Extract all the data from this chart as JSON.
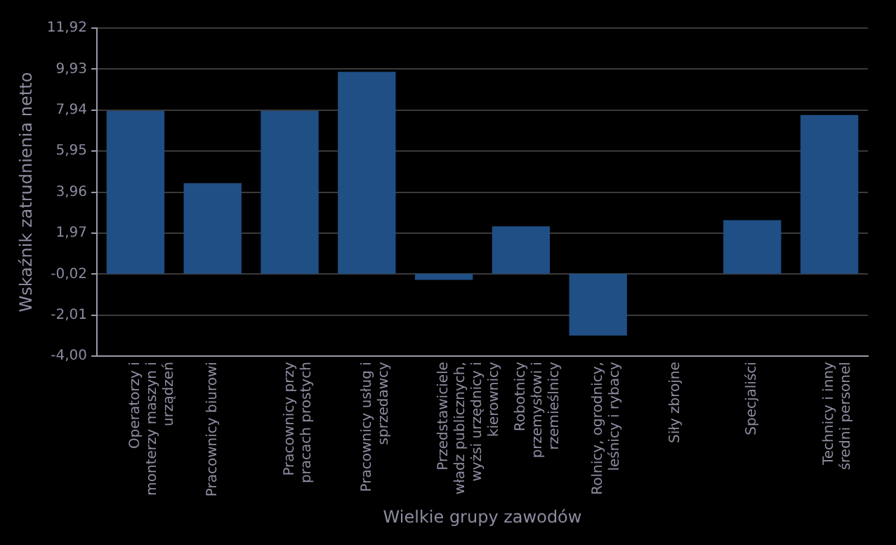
{
  "chart_data": {
    "type": "bar",
    "xlabel": "Wielkie grupy zawodów",
    "ylabel": "Wskaźnik zatrudnienia netto",
    "categories": [
      "Operatorzy i monterzy maszyn i urządzeń",
      "Pracownicy biurowi",
      "Pracownicy przy pracach prostych",
      "Pracownicy usług i sprzedawcy",
      "Przedstawiciele władz publicznych, wyżsi urzędnicy i kierownicy",
      "Robotnicy przemysłowi i rzemieślnicy",
      "Rolnicy, ogrodnicy, leśnicy i rybacy",
      "Siły zbrojne",
      "Specjaliści",
      "Technicy i inny średni personel"
    ],
    "values": [
      7.9,
      4.4,
      7.9,
      9.8,
      -0.3,
      2.3,
      -3.0,
      null,
      2.6,
      7.7
    ],
    "color": "#1f4f85",
    "ylim": [
      -4,
      11.92
    ],
    "yticks": [
      {
        "value": -4,
        "label": "-4,00"
      },
      {
        "value": -2.01,
        "label": "-2,01"
      },
      {
        "value": -0.02,
        "label": "-0,02"
      },
      {
        "value": 1.97,
        "label": "1,97"
      },
      {
        "value": 3.96,
        "label": "3,96"
      },
      {
        "value": 5.95,
        "label": "5,95"
      },
      {
        "value": 7.94,
        "label": "7,94"
      },
      {
        "value": 9.93,
        "label": "9,93"
      },
      {
        "value": 11.92,
        "label": "11,92"
      }
    ],
    "grid": "y",
    "legend": false
  }
}
